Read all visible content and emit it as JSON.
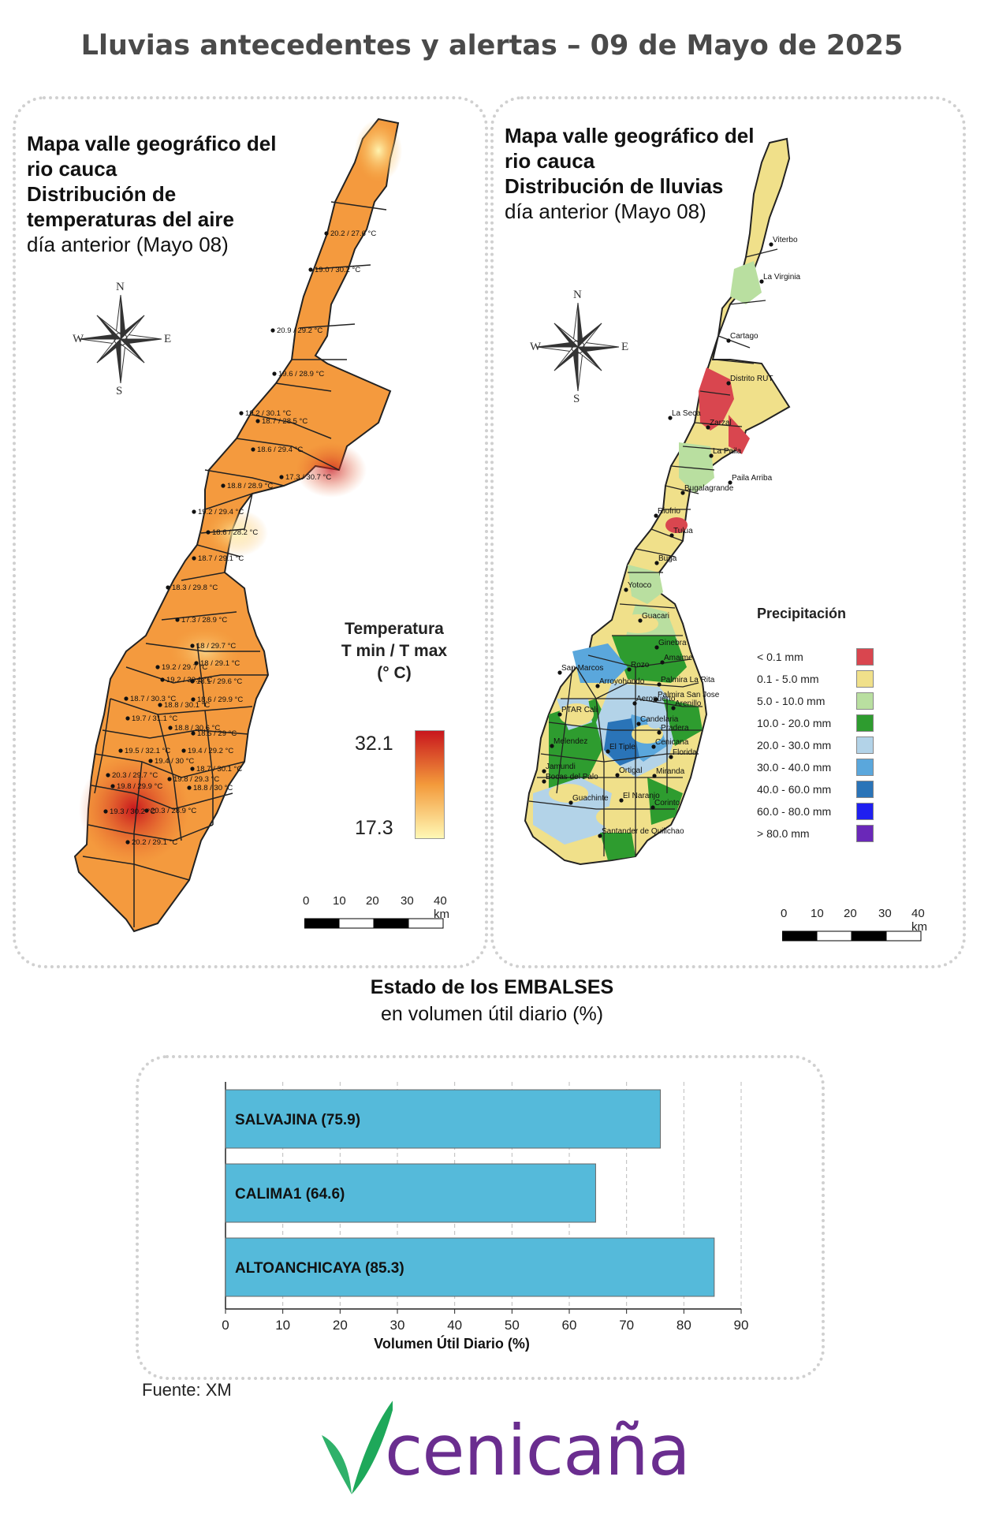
{
  "header": {
    "title": "Lluvias antecedentes y alertas – 09 de Mayo de 2025"
  },
  "temp_panel": {
    "title_line1": "Mapa valle geográfico del",
    "title_line2": "rio cauca",
    "title_line3": "Distribución de",
    "title_line4": "temperaturas del aire",
    "title_line5": "día anterior (Mayo 08)",
    "legend_title_1": "Temperatura",
    "legend_title_2": "T min / T max",
    "legend_title_3": "(° C)",
    "legend_max": "32.1",
    "legend_min": "17.3",
    "gradient_top": "#c8161d",
    "gradient_mid": "#f39a3b",
    "gradient_bottom": "#fff8b5",
    "stations": [
      "20.2 / 27.6 °C",
      "19.0 / 30.2 °C",
      "20.9 / 29.2 °C",
      "19.6 / 28.9 °C",
      "19.2 / 30.1 °C",
      "18.7 / 28.5 °C",
      "18.6 / 29.4 °C",
      "17.3 / 30.7 °C",
      "18.8 / 28.9 °C",
      "19.2 / 29.4 °C",
      "18.6 / 28.2 °C",
      "18.7 / 29.1 °C",
      "18.3 / 29.8 °C",
      "17.3 / 28.9 °C",
      "18 / 29.7 °C",
      "19.2 / 29.7 °C",
      "18 / 29.1 °C",
      "19.2 / 30.1 °C",
      "18.1 / 29.6 °C",
      "18.7 / 30.3 °C",
      "18.6 / 29.9 °C",
      "18.8 / 30.1 °C",
      "19.7 / 31.1 °C",
      "18.8 / 30.6 °C",
      "18.5 / 29 °C",
      "19.5 / 32.1 °C",
      "19.4 / 29.2 °C",
      "19.4 / 30 °C",
      "18.7 / 30.1 °C",
      "20.3 / 29.7 °C",
      "19.8 / 29.3 °C",
      "19.8 / 29.9 °C",
      "18.8 / 30 °C",
      "19.3 / 30.2 °C",
      "20.3 / 28.9 °C",
      "20.2 / 29.1 °C"
    ]
  },
  "rain_panel": {
    "title_line1": "Mapa valle geográfico del",
    "title_line2": "rio cauca",
    "title_line3": "Distribución de lluvias",
    "title_line4": "día anterior (Mayo 08)",
    "legend_title": "Precipitación",
    "legend": [
      {
        "label": "< 0.1 mm",
        "color": "#d9464f"
      },
      {
        "label": "0.1 - 5.0 mm",
        "color": "#f0e08a"
      },
      {
        "label": "5.0 - 10.0 mm",
        "color": "#b9dfa0"
      },
      {
        "label": "10.0 - 20.0 mm",
        "color": "#2e9c2f"
      },
      {
        "label": "20.0 - 30.0 mm",
        "color": "#b3d3e8"
      },
      {
        "label": "30.0 - 40.0 mm",
        "color": "#5aa7dc"
      },
      {
        "label": "40.0 - 60.0 mm",
        "color": "#2a74b8"
      },
      {
        "label": "60.0 - 80.0 mm",
        "color": "#1f1ff0"
      },
      {
        "label": "> 80.0 mm",
        "color": "#6a28b8"
      }
    ],
    "places": [
      "Viterbo",
      "La Virginia",
      "Cartago",
      "Distrito RUT",
      "La Seca",
      "Zarzal",
      "La Paila",
      "Paila Arriba",
      "Bugalagrande",
      "Riofrio",
      "Tulua",
      "Buga",
      "Yotoco",
      "Guacari",
      "Ginebra",
      "San Marcos",
      "Amaime",
      "Rozo",
      "Palmira La Rita",
      "Arroyohondo",
      "Palmira San Jose",
      "Aeropuerto",
      "Arenillo",
      "PTAR Cali",
      "Candelaria",
      "Pradera",
      "Melendez",
      "Cenicana",
      "El Tiple",
      "Florida",
      "Jamundi",
      "Bocas del Palo",
      "Ortigal",
      "Miranda",
      "Guachinte",
      "El Naranjo",
      "Corinto",
      "Santander de Quilichao"
    ]
  },
  "compass": {
    "n": "N",
    "s": "S",
    "e": "E",
    "w": "W"
  },
  "scale": {
    "t0": "0",
    "t1": "10",
    "t2": "20",
    "t3": "30",
    "t4": "40 km"
  },
  "embalses": {
    "title": "Estado de los EMBALSES",
    "subtitle": "en volumen útil diario (%)",
    "bar_color": "#55bada"
  },
  "chart_data": {
    "type": "bar",
    "orientation": "horizontal",
    "categories": [
      "SALVAJINA",
      "CALIMA1",
      "ALTOANCHICAYA"
    ],
    "bar_labels": [
      "SALVAJINA (75.9)",
      "CALIMA1 (64.6)",
      "ALTOANCHICAYA (85.3)"
    ],
    "values": [
      75.9,
      64.6,
      85.3
    ],
    "xlabel": "Volumen Útil Diario (%)",
    "xlim": [
      0,
      90
    ],
    "xticks": [
      "0",
      "10",
      "20",
      "30",
      "40",
      "50",
      "60",
      "70",
      "80",
      "90"
    ],
    "grid": true
  },
  "footer": {
    "source": "Fuente: XM",
    "logo_text": "cenicaña"
  }
}
